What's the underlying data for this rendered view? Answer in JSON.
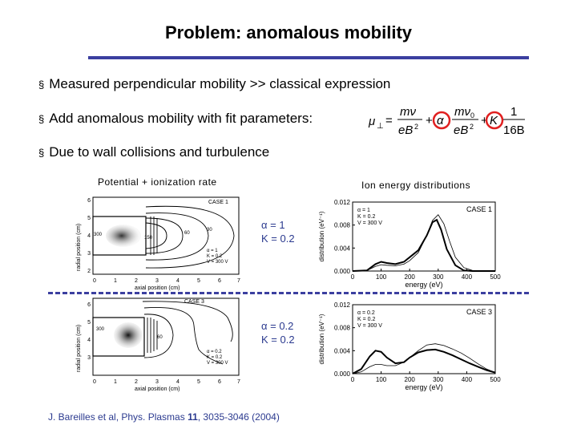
{
  "slide": {
    "title": "Problem: anomalous mobility",
    "bullets": [
      "Measured perpendicular mobility >> classical expression",
      "Add anomalous mobility with fit parameters:",
      "Due to wall collisions and turbulence"
    ],
    "bullet_marker": "§",
    "formula": {
      "lhs": "μ",
      "lhs_sub": "⊥",
      "eq": "=",
      "t1_num": "mν",
      "t1_den": "eB",
      "t1_den_sup": "2",
      "plus": "+",
      "alpha": "α",
      "t2_num": "mν",
      "t2_num_sub": "0",
      "t2_den": "eB",
      "t2_den_sup": "2",
      "k": "K",
      "t3_num": "1",
      "t3_den": "16B"
    },
    "captions": {
      "left": "Potential + ionization rate",
      "right": "Ion energy distributions"
    },
    "params": {
      "case1": {
        "alpha": "α = 1",
        "k": "K = 0.2"
      },
      "case3": {
        "alpha": "α = 0.2",
        "k": "K = 0.2"
      }
    },
    "reference": {
      "pre": "J. Bareilles et al, Phys. Plasmas ",
      "vol": "11",
      "post": ", 3035-3046 (2004)"
    }
  },
  "colors": {
    "rule": "#3b3fa0",
    "param_text": "#2b3a8f",
    "highlight_circle": "#e02020"
  },
  "contour_plots": [
    {
      "case_label": "CASE 1",
      "xlabel": "axial position (cm)",
      "ylabel": "radial position (cm)",
      "x_ticks": [
        "0",
        "1",
        "2",
        "3",
        "4",
        "5",
        "6",
        "7"
      ],
      "y_ticks": [
        "2",
        "3",
        "4",
        "5",
        "6"
      ],
      "contour_labels": [
        "300",
        "150",
        "60",
        "30"
      ],
      "legend": [
        "α = 1",
        "K = 0.2",
        "V = 300 V"
      ]
    },
    {
      "case_label": "CASE 3",
      "xlabel": "axial position (cm)",
      "ylabel": "radial position (cm)",
      "x_ticks": [
        "0",
        "1",
        "2",
        "3",
        "4",
        "5",
        "6",
        "7"
      ],
      "y_ticks": [
        "3",
        "4",
        "5",
        "6"
      ],
      "contour_labels": [
        "300",
        "60"
      ],
      "legend": [
        "α = 0.2",
        "K = 0.2",
        "V = 300 V"
      ]
    }
  ],
  "chart_data": [
    {
      "type": "line",
      "title": "CASE 1",
      "xlabel": "energy (eV)",
      "ylabel": "distribution (eV⁻¹)",
      "xlim": [
        0,
        500
      ],
      "ylim": [
        0,
        0.012
      ],
      "x_ticks": [
        "0",
        "100",
        "200",
        "300",
        "400",
        "500"
      ],
      "y_ticks": [
        "0.000",
        "0.004",
        "0.008",
        "0.012"
      ],
      "legend_text": [
        "α = 1",
        "K = 0.2",
        "V = 300 V"
      ],
      "series": [
        {
          "style": "thick",
          "x": [
            0,
            50,
            80,
            100,
            120,
            150,
            180,
            200,
            230,
            260,
            280,
            295,
            310,
            330,
            360,
            390,
            420,
            450,
            500
          ],
          "y": [
            0,
            0.0001,
            0.0012,
            0.0016,
            0.0014,
            0.0012,
            0.0016,
            0.0024,
            0.0036,
            0.0062,
            0.0085,
            0.0089,
            0.0072,
            0.0038,
            0.001,
            0.0001,
            0,
            0,
            0
          ]
        },
        {
          "style": "thin",
          "x": [
            0,
            50,
            80,
            100,
            120,
            150,
            180,
            200,
            230,
            260,
            280,
            300,
            320,
            340,
            360,
            390,
            420,
            450,
            500
          ],
          "y": [
            0,
            0.0001,
            0.0008,
            0.0011,
            0.001,
            0.0009,
            0.0012,
            0.0018,
            0.0032,
            0.0062,
            0.0088,
            0.0098,
            0.0082,
            0.0052,
            0.0024,
            0.0006,
            0.0001,
            0,
            0
          ]
        }
      ]
    },
    {
      "type": "line",
      "title": "CASE 3",
      "xlabel": "energy (eV)",
      "ylabel": "distribution (eV⁻¹)",
      "xlim": [
        0,
        500
      ],
      "ylim": [
        0,
        0.012
      ],
      "x_ticks": [
        "0",
        "100",
        "200",
        "300",
        "400",
        "500"
      ],
      "y_ticks": [
        "0.000",
        "0.004",
        "0.008",
        "0.012"
      ],
      "legend_text": [
        "α = 0.2",
        "K = 0.2",
        "V = 300 V"
      ],
      "series": [
        {
          "style": "thick",
          "x": [
            0,
            30,
            60,
            80,
            100,
            120,
            150,
            180,
            200,
            230,
            260,
            290,
            320,
            350,
            380,
            410,
            440,
            470,
            500
          ],
          "y": [
            0,
            0.0008,
            0.003,
            0.004,
            0.0038,
            0.0028,
            0.0018,
            0.002,
            0.0028,
            0.0037,
            0.0041,
            0.0042,
            0.0038,
            0.0032,
            0.0025,
            0.0018,
            0.0012,
            0.0006,
            0.0002
          ]
        },
        {
          "style": "thin",
          "x": [
            0,
            30,
            60,
            80,
            100,
            120,
            150,
            180,
            200,
            230,
            260,
            290,
            320,
            350,
            380,
            410,
            440,
            470,
            500
          ],
          "y": [
            0,
            0.0003,
            0.0012,
            0.0016,
            0.0016,
            0.0014,
            0.0014,
            0.002,
            0.0028,
            0.004,
            0.005,
            0.0052,
            0.0049,
            0.0043,
            0.0036,
            0.0027,
            0.0017,
            0.0008,
            0.0002
          ]
        }
      ]
    }
  ]
}
